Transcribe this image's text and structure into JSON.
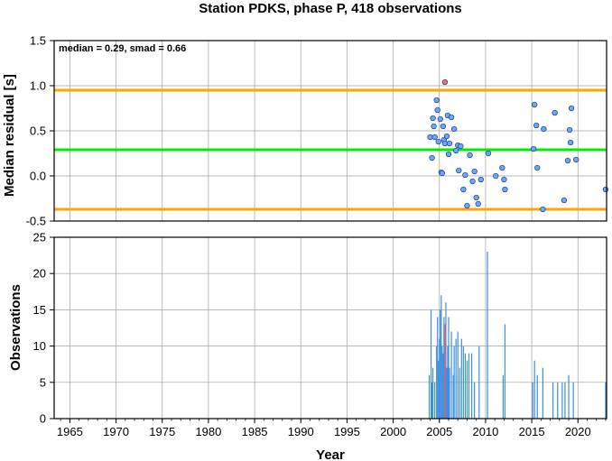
{
  "chart_data": [
    {
      "type": "scatter",
      "title": "Station PDKS, phase P, 418 observations",
      "ylabel": "Median residual [s]",
      "annotation": "median = 0.29, smad = 0.66",
      "xlim": [
        1963.3,
        2023.1
      ],
      "ylim": [
        -0.5,
        1.5
      ],
      "yticks": [
        "-0.5",
        "0.0",
        "0.5",
        "1.0",
        "1.5"
      ],
      "ytick_values": [
        -0.5,
        0.0,
        0.5,
        1.0,
        1.5
      ],
      "grid": true,
      "reference_lines": [
        {
          "y": 0.95,
          "color": "#ffa500"
        },
        {
          "y": 0.29,
          "color": "#00ee00"
        },
        {
          "y": -0.37,
          "color": "#ffa500"
        }
      ],
      "series": [
        {
          "marker_color": "#6aa8ff",
          "points": [
            [
              2004.0,
              0.43
            ],
            [
              2004.2,
              0.2
            ],
            [
              2004.3,
              0.64
            ],
            [
              2004.4,
              0.55
            ],
            [
              2004.5,
              0.43
            ],
            [
              2004.7,
              0.84
            ],
            [
              2004.8,
              0.73
            ],
            [
              2004.9,
              0.38
            ],
            [
              2005.1,
              0.63
            ],
            [
              2005.2,
              0.04
            ],
            [
              2005.3,
              0.03
            ],
            [
              2005.4,
              0.55
            ],
            [
              2005.5,
              0.4
            ],
            [
              2005.6,
              0.36
            ],
            [
              2005.8,
              0.44
            ],
            [
              2005.9,
              0.67
            ],
            [
              2006.0,
              0.24
            ],
            [
              2006.1,
              0.36
            ],
            [
              2006.3,
              0.65
            ],
            [
              2006.6,
              0.52
            ],
            [
              2006.8,
              0.28
            ],
            [
              2007.0,
              0.34
            ],
            [
              2007.1,
              0.06
            ],
            [
              2007.3,
              0.33
            ],
            [
              2007.6,
              -0.15
            ],
            [
              2007.8,
              0.01
            ],
            [
              2008.0,
              -0.33
            ],
            [
              2008.3,
              0.23
            ],
            [
              2008.6,
              -0.06
            ],
            [
              2008.8,
              0.05
            ],
            [
              2009.0,
              -0.24
            ],
            [
              2009.2,
              -0.31
            ],
            [
              2009.5,
              -0.04
            ],
            [
              2010.3,
              0.25
            ],
            [
              2011.1,
              0.0
            ],
            [
              2011.8,
              0.09
            ],
            [
              2012.0,
              -0.04
            ],
            [
              2012.1,
              -0.15
            ],
            [
              2015.2,
              0.3
            ],
            [
              2015.3,
              0.79
            ],
            [
              2015.5,
              0.56
            ],
            [
              2015.6,
              0.09
            ],
            [
              2016.2,
              -0.37
            ],
            [
              2016.3,
              0.52
            ],
            [
              2017.5,
              0.7
            ],
            [
              2018.5,
              -0.27
            ],
            [
              2018.9,
              0.17
            ],
            [
              2019.1,
              0.51
            ],
            [
              2019.2,
              0.37
            ],
            [
              2019.3,
              0.75
            ],
            [
              2019.8,
              0.18
            ],
            [
              2023.0,
              -0.15
            ]
          ]
        },
        {
          "marker_color": "#ff6a6a",
          "points": [
            [
              2005.6,
              1.04
            ]
          ]
        }
      ]
    },
    {
      "type": "bar",
      "ylabel": "Observations",
      "xlabel": "Year",
      "xlim": [
        1963.3,
        2023.1
      ],
      "ylim": [
        0,
        25
      ],
      "yticks": [
        "0",
        "5",
        "10",
        "15",
        "20",
        "25"
      ],
      "ytick_values": [
        0,
        5,
        10,
        15,
        20,
        25
      ],
      "xticks": [
        "1965",
        "1970",
        "1975",
        "1980",
        "1985",
        "1990",
        "1995",
        "2000",
        "2005",
        "2010",
        "2015",
        "2020"
      ],
      "xtick_values": [
        1965,
        1970,
        1975,
        1980,
        1985,
        1990,
        1995,
        2000,
        2005,
        2010,
        2015,
        2020
      ],
      "grid": true,
      "bar_color": "#3d8fe0",
      "highlight_color": "#ff5a5a",
      "bars": [
        [
          2003.9,
          6
        ],
        [
          2004.1,
          15
        ],
        [
          2004.2,
          5
        ],
        [
          2004.3,
          7
        ],
        [
          2004.5,
          5
        ],
        [
          2004.7,
          10
        ],
        [
          2004.8,
          14
        ],
        [
          2004.9,
          8
        ],
        [
          2005.0,
          11
        ],
        [
          2005.1,
          15
        ],
        [
          2005.2,
          17
        ],
        [
          2005.3,
          10
        ],
        [
          2005.4,
          9
        ],
        [
          2005.5,
          14
        ],
        [
          2005.6,
          5
        ],
        [
          2005.7,
          16
        ],
        [
          2005.8,
          7
        ],
        [
          2005.9,
          10
        ],
        [
          2006.0,
          14
        ],
        [
          2006.1,
          7
        ],
        [
          2006.3,
          12
        ],
        [
          2006.5,
          6
        ],
        [
          2006.6,
          10
        ],
        [
          2006.8,
          11
        ],
        [
          2007.0,
          12
        ],
        [
          2007.2,
          7
        ],
        [
          2007.4,
          11
        ],
        [
          2007.6,
          10
        ],
        [
          2007.8,
          9
        ],
        [
          2008.0,
          8
        ],
        [
          2008.2,
          9
        ],
        [
          2008.5,
          9
        ],
        [
          2008.8,
          5
        ],
        [
          2009.3,
          10
        ],
        [
          2010.2,
          23
        ],
        [
          2011.9,
          6
        ],
        [
          2012.1,
          13
        ],
        [
          2015.1,
          5
        ],
        [
          2015.3,
          8
        ],
        [
          2015.6,
          6
        ],
        [
          2016.2,
          7
        ],
        [
          2017.3,
          5
        ],
        [
          2017.8,
          5
        ],
        [
          2018.3,
          5
        ],
        [
          2018.6,
          5
        ],
        [
          2019.0,
          6
        ],
        [
          2019.5,
          5
        ],
        [
          2023.0,
          5
        ]
      ],
      "highlight_bars": [
        [
          2005.6,
          13
        ]
      ]
    }
  ]
}
